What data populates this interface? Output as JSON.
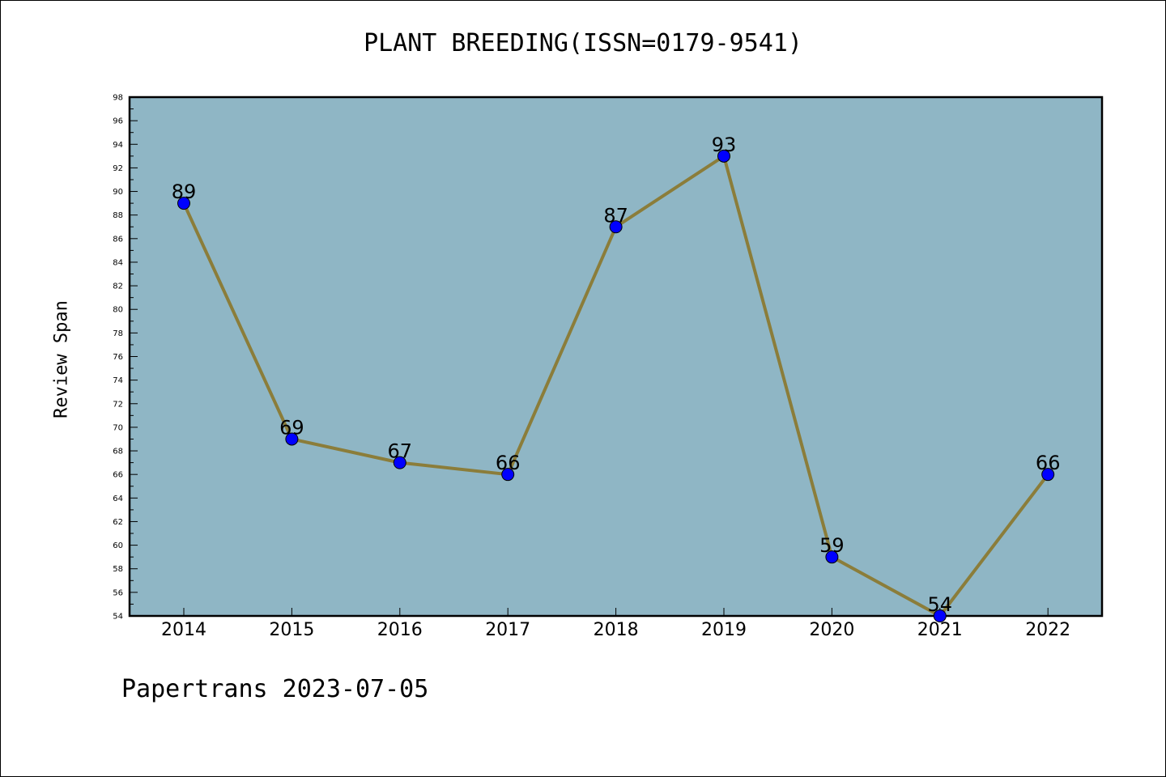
{
  "chart_data": {
    "type": "line",
    "title": "PLANT BREEDING(ISSN=0179-9541)",
    "xlabel": "",
    "ylabel": "Review Span",
    "categories": [
      "2014",
      "2015",
      "2016",
      "2017",
      "2018",
      "2019",
      "2020",
      "2021",
      "2022"
    ],
    "series": [
      {
        "values": [
          89,
          69,
          67,
          66,
          87,
          93,
          59,
          54,
          66
        ]
      }
    ],
    "ylim": [
      54,
      98
    ],
    "yticks": [
      54,
      56,
      58,
      60,
      62,
      64,
      66,
      68,
      70,
      72,
      74,
      76,
      78,
      80,
      82,
      84,
      86,
      88,
      90,
      92,
      94,
      96,
      98
    ],
    "grid": false,
    "legend": "none",
    "colors": {
      "plot_background": "#8fb6c5",
      "line": "#8b7d3a",
      "marker": "#0000ff"
    }
  },
  "footer": {
    "note": "Papertrans 2023-07-05"
  }
}
